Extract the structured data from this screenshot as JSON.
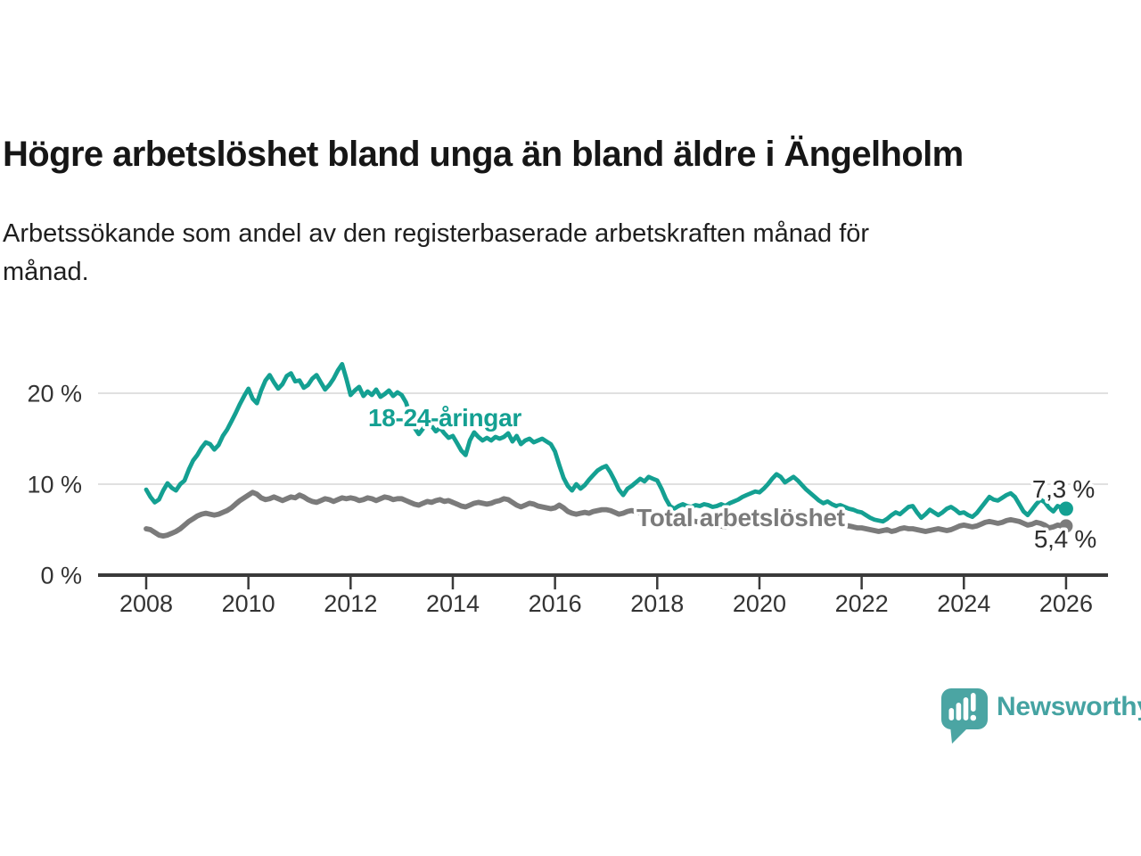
{
  "header": {
    "title": "Högre arbetslöshet bland unga än bland äldre i Ängelholm",
    "subtitle_lines": [
      "Arbetssökande som andel av den registerbaserade arbetskraften månad för",
      "månad."
    ]
  },
  "colors": {
    "youth_line": "#14a092",
    "total_line": "#7b7b7b",
    "axis_text": "#333333",
    "axis_line": "#3a3a3a",
    "gridline": "#dbdbdb",
    "end_label_text": "#2e2e2e",
    "brand": "#45a3a2"
  },
  "chart_data": {
    "type": "line",
    "unit": "%",
    "x_start_year": 2008,
    "points_per_year": 12,
    "xlim": [
      2008,
      2026
    ],
    "ylim": [
      0,
      24
    ],
    "grid": "horizontal",
    "x_ticks": [
      "2008",
      "2010",
      "2012",
      "2014",
      "2016",
      "2018",
      "2020",
      "2022",
      "2024",
      "2026"
    ],
    "y_ticks": [
      {
        "value": 0,
        "label": "0 %"
      },
      {
        "value": 10,
        "label": "10 %"
      },
      {
        "value": 20,
        "label": "20 %"
      }
    ],
    "series": [
      {
        "name": "Total arbetslöshet",
        "color": "#7b7b7b",
        "end_label": "5,4 %",
        "end_value": 5.4,
        "values": [
          5.1,
          5.0,
          4.7,
          4.4,
          4.3,
          4.4,
          4.6,
          4.8,
          5.1,
          5.5,
          5.9,
          6.2,
          6.5,
          6.7,
          6.8,
          6.7,
          6.6,
          6.7,
          6.9,
          7.1,
          7.4,
          7.8,
          8.2,
          8.5,
          8.8,
          9.1,
          8.9,
          8.5,
          8.3,
          8.4,
          8.6,
          8.4,
          8.2,
          8.4,
          8.6,
          8.5,
          8.8,
          8.6,
          8.3,
          8.1,
          8.0,
          8.2,
          8.4,
          8.3,
          8.1,
          8.3,
          8.5,
          8.4,
          8.5,
          8.4,
          8.2,
          8.3,
          8.5,
          8.4,
          8.2,
          8.4,
          8.6,
          8.5,
          8.3,
          8.4,
          8.4,
          8.2,
          8.0,
          7.8,
          7.7,
          7.9,
          8.1,
          8.0,
          8.2,
          8.3,
          8.1,
          8.2,
          8.0,
          7.8,
          7.6,
          7.5,
          7.7,
          7.9,
          8.0,
          7.9,
          7.8,
          7.9,
          8.1,
          8.2,
          8.4,
          8.3,
          8.0,
          7.7,
          7.5,
          7.7,
          7.9,
          7.8,
          7.6,
          7.5,
          7.4,
          7.3,
          7.4,
          7.7,
          7.4,
          7.0,
          6.8,
          6.7,
          6.8,
          6.9,
          6.8,
          7.0,
          7.1,
          7.2,
          7.2,
          7.1,
          6.9,
          6.7,
          6.8,
          7.0,
          7.1,
          7.0,
          6.8,
          6.7,
          6.6,
          6.5,
          6.5,
          6.4,
          6.2,
          6.1,
          6.0,
          6.1,
          6.2,
          6.1,
          6.0,
          5.9,
          5.8,
          5.7,
          5.7,
          5.6,
          5.5,
          5.4,
          5.3,
          5.4,
          5.5,
          5.6,
          5.7,
          5.8,
          5.9,
          6.0,
          6.1,
          6.2,
          6.4,
          6.7,
          6.9,
          7.0,
          6.9,
          6.8,
          6.7,
          6.6,
          6.5,
          6.4,
          6.3,
          6.2,
          6.1,
          6.0,
          5.9,
          5.8,
          5.7,
          5.6,
          5.5,
          5.4,
          5.3,
          5.2,
          5.2,
          5.1,
          5.0,
          4.9,
          4.8,
          4.9,
          5.0,
          4.8,
          4.9,
          5.1,
          5.2,
          5.1,
          5.1,
          5.0,
          4.9,
          4.8,
          4.9,
          5.0,
          5.1,
          5.0,
          4.9,
          5.0,
          5.2,
          5.4,
          5.5,
          5.4,
          5.3,
          5.4,
          5.6,
          5.8,
          5.9,
          5.8,
          5.7,
          5.8,
          6.0,
          6.1,
          6.0,
          5.9,
          5.7,
          5.5,
          5.6,
          5.8,
          5.7,
          5.5,
          5.2,
          5.3,
          5.5,
          5.4,
          5.4
        ]
      },
      {
        "name": "18-24-åringar",
        "color": "#14a092",
        "end_label": "7,3 %",
        "end_value": 7.3,
        "values": [
          9.4,
          8.6,
          8.0,
          8.3,
          9.3,
          10.1,
          9.6,
          9.3,
          10.0,
          10.4,
          11.6,
          12.6,
          13.2,
          14.0,
          14.6,
          14.4,
          13.8,
          14.3,
          15.3,
          16.0,
          16.9,
          17.8,
          18.8,
          19.7,
          20.5,
          19.4,
          18.9,
          20.3,
          21.4,
          22.0,
          21.2,
          20.5,
          21.0,
          21.9,
          22.2,
          21.3,
          21.4,
          20.6,
          20.9,
          21.6,
          22.0,
          21.2,
          20.4,
          20.9,
          21.6,
          22.5,
          23.2,
          21.6,
          19.8,
          20.3,
          20.7,
          19.7,
          20.2,
          19.8,
          20.4,
          19.6,
          19.9,
          20.3,
          19.7,
          20.1,
          19.8,
          19.0,
          17.6,
          16.2,
          15.5,
          16.1,
          16.8,
          16.4,
          15.8,
          16.2,
          15.6,
          15.1,
          15.3,
          14.5,
          13.7,
          13.2,
          14.8,
          15.7,
          15.2,
          14.8,
          15.1,
          14.8,
          15.2,
          15.0,
          15.2,
          15.6,
          14.7,
          15.3,
          14.4,
          14.8,
          15.0,
          14.6,
          14.8,
          15.0,
          14.7,
          14.4,
          13.6,
          12.1,
          10.7,
          9.8,
          9.3,
          10.0,
          9.5,
          9.9,
          10.5,
          11.0,
          11.5,
          11.8,
          12.0,
          11.3,
          10.4,
          9.4,
          8.8,
          9.5,
          9.8,
          10.2,
          10.6,
          10.3,
          10.8,
          10.6,
          10.4,
          9.5,
          8.4,
          7.6,
          7.3,
          7.6,
          7.8,
          7.6,
          7.5,
          7.7,
          7.6,
          7.8,
          7.7,
          7.5,
          7.6,
          7.8,
          7.6,
          7.9,
          8.1,
          8.3,
          8.6,
          8.8,
          9.0,
          9.2,
          9.1,
          9.5,
          10.0,
          10.6,
          11.1,
          10.8,
          10.2,
          10.5,
          10.8,
          10.4,
          9.9,
          9.4,
          9.0,
          8.6,
          8.2,
          7.9,
          8.1,
          7.8,
          7.6,
          7.7,
          7.5,
          7.3,
          7.2,
          7.0,
          6.9,
          6.6,
          6.3,
          6.1,
          6.0,
          5.9,
          6.2,
          6.6,
          6.9,
          6.7,
          7.1,
          7.5,
          7.6,
          6.9,
          6.3,
          6.7,
          7.2,
          6.9,
          6.6,
          6.9,
          7.3,
          7.5,
          7.2,
          6.8,
          6.9,
          6.6,
          6.4,
          6.8,
          7.4,
          8.0,
          8.6,
          8.3,
          8.2,
          8.5,
          8.8,
          9.0,
          8.6,
          7.8,
          7.0,
          6.6,
          7.2,
          7.8,
          8.3,
          8.0,
          7.4,
          7.0,
          7.6,
          7.4,
          7.3
        ]
      }
    ]
  },
  "footer": {
    "brand": "Newsworthy"
  }
}
